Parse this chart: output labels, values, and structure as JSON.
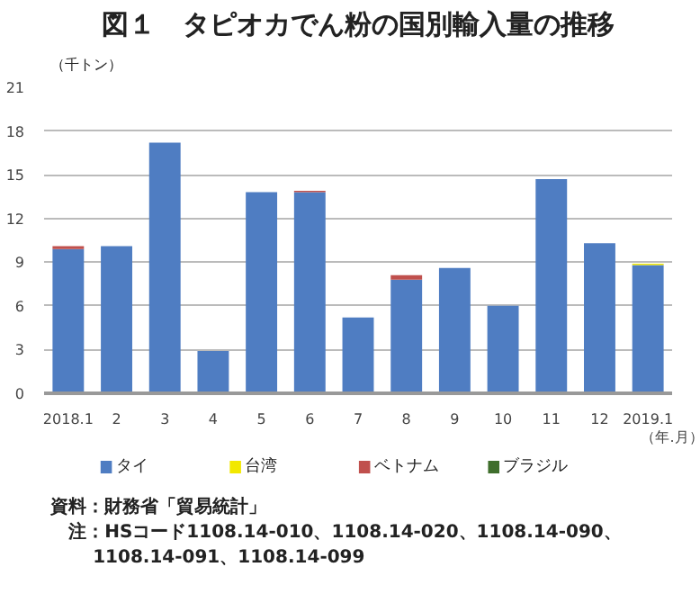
{
  "chart_data": {
    "type": "bar",
    "stacked": true,
    "title": "図１　タピオカでん粉の国別輸入量の推移",
    "ylabel": "（千トン）",
    "xlabel": "（年.月）",
    "categories": [
      "2018.1",
      "2",
      "3",
      "4",
      "5",
      "6",
      "7",
      "8",
      "9",
      "10",
      "11",
      "12",
      "2019.1"
    ],
    "series": [
      {
        "name": "タイ",
        "color": "#4f7dc2",
        "values": [
          9.9,
          10.1,
          17.2,
          2.9,
          13.8,
          13.8,
          5.2,
          7.8,
          8.6,
          6.0,
          14.7,
          10.3,
          8.8
        ]
      },
      {
        "name": "台湾",
        "color": "#f2e800",
        "values": [
          0,
          0,
          0,
          0,
          0,
          0,
          0,
          0,
          0,
          0,
          0,
          0,
          0.1
        ]
      },
      {
        "name": "ベトナム",
        "color": "#c0504d",
        "values": [
          0.2,
          0,
          0,
          0,
          0,
          0.1,
          0,
          0.3,
          0,
          0,
          0,
          0,
          0
        ]
      },
      {
        "name": "ブラジル",
        "color": "#3f6e2c",
        "values": [
          0,
          0,
          0,
          0,
          0,
          0,
          0,
          0,
          0,
          0,
          0,
          0,
          0
        ]
      }
    ],
    "ylim": [
      0,
      21
    ],
    "yticks": [
      0,
      3,
      6,
      9,
      12,
      15,
      18,
      21
    ],
    "grid": "y",
    "legend": "bottom",
    "annotations": [
      "資料：財務省「貿易統計」",
      "　注：HSコード1108.14-010、1108.14-020、1108.14-090、1108.14-091、1108.14-099"
    ]
  }
}
